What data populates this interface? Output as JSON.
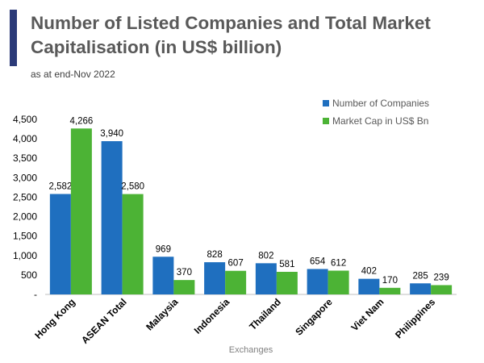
{
  "header": {
    "title": "Number of Listed Companies and Total Market Capitalisation (in US$ billion)",
    "subtitle": "as at end-Nov 2022"
  },
  "colors": {
    "accent": "#2b3a78",
    "series_companies": "#1f6fbf",
    "series_marketcap": "#4cb335"
  },
  "chart_data": {
    "type": "bar",
    "title": "Number of Listed Companies and Total Market Capitalisation (in US$ billion)",
    "subtitle": "as at end-Nov 2022",
    "xlabel": "Exchanges",
    "ylabel": "",
    "ylim": [
      0,
      4500
    ],
    "yticks": [
      {
        "value": 0,
        "label": "-"
      },
      {
        "value": 500,
        "label": "500"
      },
      {
        "value": 1000,
        "label": "1,000"
      },
      {
        "value": 1500,
        "label": "1,500"
      },
      {
        "value": 2000,
        "label": "2,000"
      },
      {
        "value": 2500,
        "label": "2,500"
      },
      {
        "value": 3000,
        "label": "3,000"
      },
      {
        "value": 3500,
        "label": "3,500"
      },
      {
        "value": 4000,
        "label": "4,000"
      },
      {
        "value": 4500,
        "label": "4,500"
      }
    ],
    "grid": false,
    "legend": "top-right",
    "categories": [
      "Hong Kong",
      "ASEAN Total",
      "Malaysia",
      "Indonesia",
      "Thailand",
      "Singapore",
      "Viet Nam",
      "Philippines"
    ],
    "series": [
      {
        "name": "Number of Companies",
        "values": [
          2582,
          3940,
          969,
          828,
          802,
          654,
          402,
          285
        ]
      },
      {
        "name": "Market Cap in US$ Bn",
        "values": [
          4266,
          2580,
          370,
          607,
          581,
          612,
          170,
          239
        ]
      }
    ]
  }
}
